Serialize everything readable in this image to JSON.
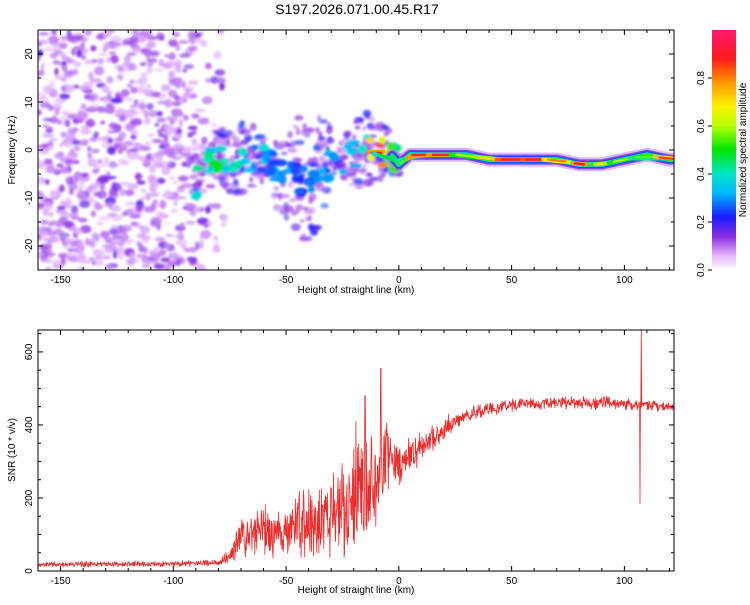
{
  "title": "S197.2026.071.00.45.R17",
  "chart_data": [
    {
      "type": "heatmap",
      "xlabel": "Height of straight line (km)",
      "ylabel": "Frequency (Hz)",
      "xlim": [
        -160,
        122
      ],
      "ylim": [
        -25,
        25
      ],
      "xticks": [
        -150,
        -100,
        -50,
        0,
        50,
        100
      ],
      "yticks": [
        -20,
        -10,
        0,
        10,
        20
      ],
      "colorbar": {
        "label": "Normalized spectral amplitude",
        "range": [
          0.0,
          1.0
        ],
        "ticks": [
          0.0,
          0.2,
          0.4,
          0.6,
          0.8
        ],
        "tick_labels": [
          "0.0",
          "0.2",
          "0.4",
          "0.6",
          "0.8"
        ]
      },
      "ridge": {
        "x": [
          -90,
          -85,
          -80,
          -75,
          -70,
          -65,
          -60,
          -55,
          -50,
          -45,
          -40,
          -35,
          -30,
          -25,
          -20,
          -15,
          -10,
          -5,
          0,
          5,
          10,
          20,
          30,
          40,
          50,
          60,
          70,
          80,
          90,
          100,
          110,
          120
        ],
        "freq": [
          -7,
          -2,
          -1,
          -2,
          -2,
          -1,
          -2,
          -3,
          -5,
          -6,
          -7,
          -4,
          -3,
          -2,
          -1,
          0,
          -1,
          0,
          -3,
          -1,
          -1,
          -1,
          -1,
          -2,
          -2,
          -2,
          -2,
          -3,
          -3,
          -2,
          -1,
          -2
        ],
        "amplitude": [
          0.35,
          0.4,
          0.45,
          0.4,
          0.35,
          0.3,
          0.35,
          0.3,
          0.28,
          0.25,
          0.25,
          0.3,
          0.3,
          0.35,
          0.35,
          0.4,
          0.9,
          0.5,
          0.45,
          0.55,
          0.9,
          0.9,
          0.6,
          0.7,
          0.95,
          0.95,
          0.8,
          0.9,
          0.7,
          0.6,
          0.55,
          0.85
        ]
      },
      "noise_region_x": [
        -160,
        -85
      ]
    },
    {
      "type": "line",
      "xlabel": "Height of straight line (km)",
      "ylabel": "SNR (10 * v/v)",
      "xlim": [
        -160,
        122
      ],
      "ylim": [
        0,
        660
      ],
      "xticks": [
        -150,
        -100,
        -50,
        0,
        50,
        100
      ],
      "yticks": [
        0,
        200,
        400,
        600
      ],
      "color": "#ee2a2a",
      "envelope": {
        "x": [
          -160,
          -100,
          -80,
          -75,
          -70,
          -60,
          -55,
          -50,
          -45,
          -40,
          -30,
          -20,
          -10,
          -5,
          0,
          10,
          20,
          30,
          40,
          50,
          60,
          80,
          100,
          120
        ],
        "mean": [
          18,
          20,
          22,
          40,
          90,
          110,
          95,
          120,
          140,
          130,
          160,
          200,
          260,
          300,
          290,
          340,
          390,
          430,
          445,
          455,
          460,
          462,
          458,
          450
        ],
        "spread": [
          8,
          9,
          10,
          25,
          60,
          80,
          70,
          90,
          120,
          130,
          140,
          170,
          180,
          120,
          70,
          50,
          35,
          25,
          22,
          20,
          20,
          20,
          20,
          18
        ]
      },
      "spikes": [
        {
          "x": -8,
          "y": 555
        },
        {
          "x": 107.5,
          "y": 660
        },
        {
          "x": 107.0,
          "y": 185
        },
        {
          "x": -15,
          "y": 480
        },
        {
          "x": -19,
          "y": 410
        }
      ]
    }
  ],
  "colors": {
    "axis": "#000000",
    "line": "#ee2a2a"
  }
}
